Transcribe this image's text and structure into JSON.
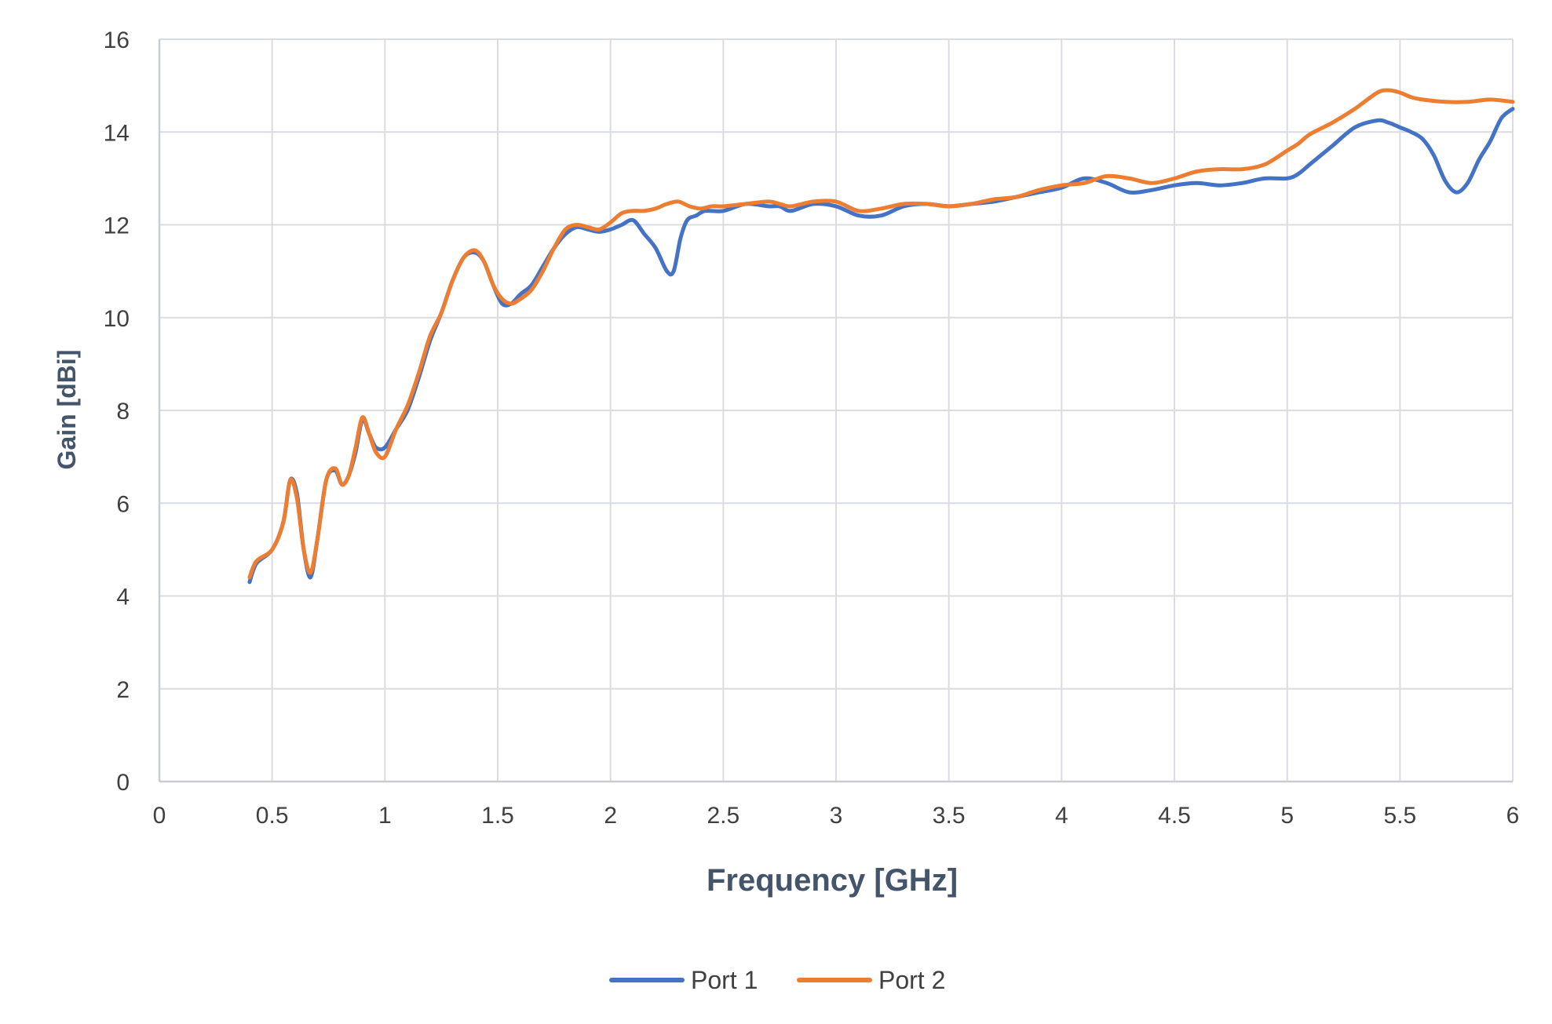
{
  "chart_data": {
    "type": "line",
    "title": "",
    "xlabel": "Frequency [GHz]",
    "ylabel": "Gain [dBi]",
    "xlim": [
      0,
      6
    ],
    "ylim": [
      0,
      16
    ],
    "x_ticks": [
      "0",
      "0.5",
      "1",
      "1.5",
      "2",
      "2.5",
      "3",
      "3.5",
      "4",
      "4.5",
      "5",
      "5.5",
      "6"
    ],
    "y_ticks": [
      "0",
      "2",
      "4",
      "6",
      "8",
      "10",
      "12",
      "14",
      "16"
    ],
    "grid": true,
    "legend_position": "bottom",
    "colors": {
      "Port 1": "#4472c4",
      "Port 2": "#ed7d31"
    },
    "series": [
      {
        "name": "Port 1",
        "color": "#4472c4",
        "x": [
          0.4,
          0.43,
          0.5,
          0.55,
          0.58,
          0.61,
          0.64,
          0.67,
          0.7,
          0.74,
          0.78,
          0.81,
          0.84,
          0.87,
          0.9,
          0.93,
          0.96,
          1.0,
          1.05,
          1.1,
          1.15,
          1.2,
          1.25,
          1.3,
          1.35,
          1.4,
          1.44,
          1.48,
          1.52,
          1.56,
          1.6,
          1.65,
          1.7,
          1.75,
          1.8,
          1.85,
          1.9,
          1.95,
          2.0,
          2.05,
          2.1,
          2.15,
          2.2,
          2.25,
          2.28,
          2.31,
          2.34,
          2.38,
          2.42,
          2.5,
          2.6,
          2.7,
          2.75,
          2.8,
          2.9,
          3.0,
          3.1,
          3.2,
          3.3,
          3.4,
          3.5,
          3.6,
          3.7,
          3.8,
          3.9,
          4.0,
          4.1,
          4.2,
          4.3,
          4.4,
          4.5,
          4.6,
          4.7,
          4.8,
          4.9,
          5.0,
          5.05,
          5.1,
          5.2,
          5.3,
          5.4,
          5.45,
          5.5,
          5.55,
          5.6,
          5.65,
          5.7,
          5.75,
          5.8,
          5.85,
          5.9,
          5.95,
          6.0
        ],
        "y": [
          4.3,
          4.7,
          5.0,
          5.6,
          6.5,
          6.2,
          5.0,
          4.4,
          5.2,
          6.5,
          6.7,
          6.4,
          6.6,
          7.1,
          7.8,
          7.5,
          7.2,
          7.2,
          7.6,
          8.0,
          8.7,
          9.5,
          10.1,
          10.8,
          11.3,
          11.4,
          11.2,
          10.7,
          10.3,
          10.3,
          10.5,
          10.7,
          11.1,
          11.5,
          11.8,
          11.95,
          11.9,
          11.85,
          11.9,
          12.0,
          12.1,
          11.8,
          11.5,
          11.0,
          11.0,
          11.7,
          12.1,
          12.2,
          12.3,
          12.3,
          12.45,
          12.4,
          12.4,
          12.3,
          12.45,
          12.4,
          12.2,
          12.2,
          12.4,
          12.45,
          12.4,
          12.45,
          12.5,
          12.6,
          12.7,
          12.8,
          13.0,
          12.9,
          12.7,
          12.75,
          12.85,
          12.9,
          12.85,
          12.9,
          13.0,
          13.0,
          13.1,
          13.3,
          13.7,
          14.1,
          14.25,
          14.2,
          14.1,
          14.0,
          13.85,
          13.5,
          12.95,
          12.7,
          12.9,
          13.4,
          13.8,
          14.3,
          14.5
        ]
      },
      {
        "name": "Port 2",
        "color": "#ed7d31",
        "x": [
          0.4,
          0.43,
          0.5,
          0.55,
          0.58,
          0.61,
          0.64,
          0.67,
          0.7,
          0.74,
          0.78,
          0.81,
          0.84,
          0.87,
          0.9,
          0.93,
          0.96,
          1.0,
          1.05,
          1.1,
          1.15,
          1.2,
          1.25,
          1.3,
          1.35,
          1.4,
          1.44,
          1.48,
          1.52,
          1.56,
          1.6,
          1.65,
          1.7,
          1.75,
          1.8,
          1.85,
          1.9,
          1.95,
          2.0,
          2.05,
          2.1,
          2.15,
          2.2,
          2.25,
          2.3,
          2.35,
          2.4,
          2.45,
          2.5,
          2.6,
          2.7,
          2.75,
          2.8,
          2.9,
          3.0,
          3.1,
          3.2,
          3.3,
          3.4,
          3.5,
          3.6,
          3.7,
          3.8,
          3.9,
          4.0,
          4.1,
          4.2,
          4.3,
          4.4,
          4.5,
          4.6,
          4.7,
          4.8,
          4.9,
          5.0,
          5.05,
          5.1,
          5.2,
          5.3,
          5.4,
          5.45,
          5.5,
          5.55,
          5.6,
          5.7,
          5.8,
          5.9,
          6.0
        ],
        "y": [
          4.4,
          4.75,
          5.0,
          5.6,
          6.5,
          6.1,
          5.0,
          4.5,
          5.2,
          6.5,
          6.75,
          6.4,
          6.6,
          7.2,
          7.85,
          7.5,
          7.1,
          7.0,
          7.6,
          8.1,
          8.8,
          9.6,
          10.1,
          10.8,
          11.3,
          11.45,
          11.2,
          10.7,
          10.4,
          10.3,
          10.4,
          10.6,
          11.0,
          11.5,
          11.9,
          12.0,
          11.95,
          11.9,
          12.05,
          12.25,
          12.3,
          12.3,
          12.35,
          12.45,
          12.5,
          12.4,
          12.35,
          12.4,
          12.4,
          12.45,
          12.5,
          12.45,
          12.4,
          12.5,
          12.5,
          12.3,
          12.35,
          12.45,
          12.45,
          12.4,
          12.45,
          12.55,
          12.6,
          12.75,
          12.85,
          12.9,
          13.05,
          13.0,
          12.9,
          13.0,
          13.15,
          13.2,
          13.2,
          13.3,
          13.6,
          13.75,
          13.95,
          14.2,
          14.5,
          14.85,
          14.9,
          14.85,
          14.75,
          14.7,
          14.65,
          14.65,
          14.7,
          14.65
        ]
      }
    ]
  }
}
